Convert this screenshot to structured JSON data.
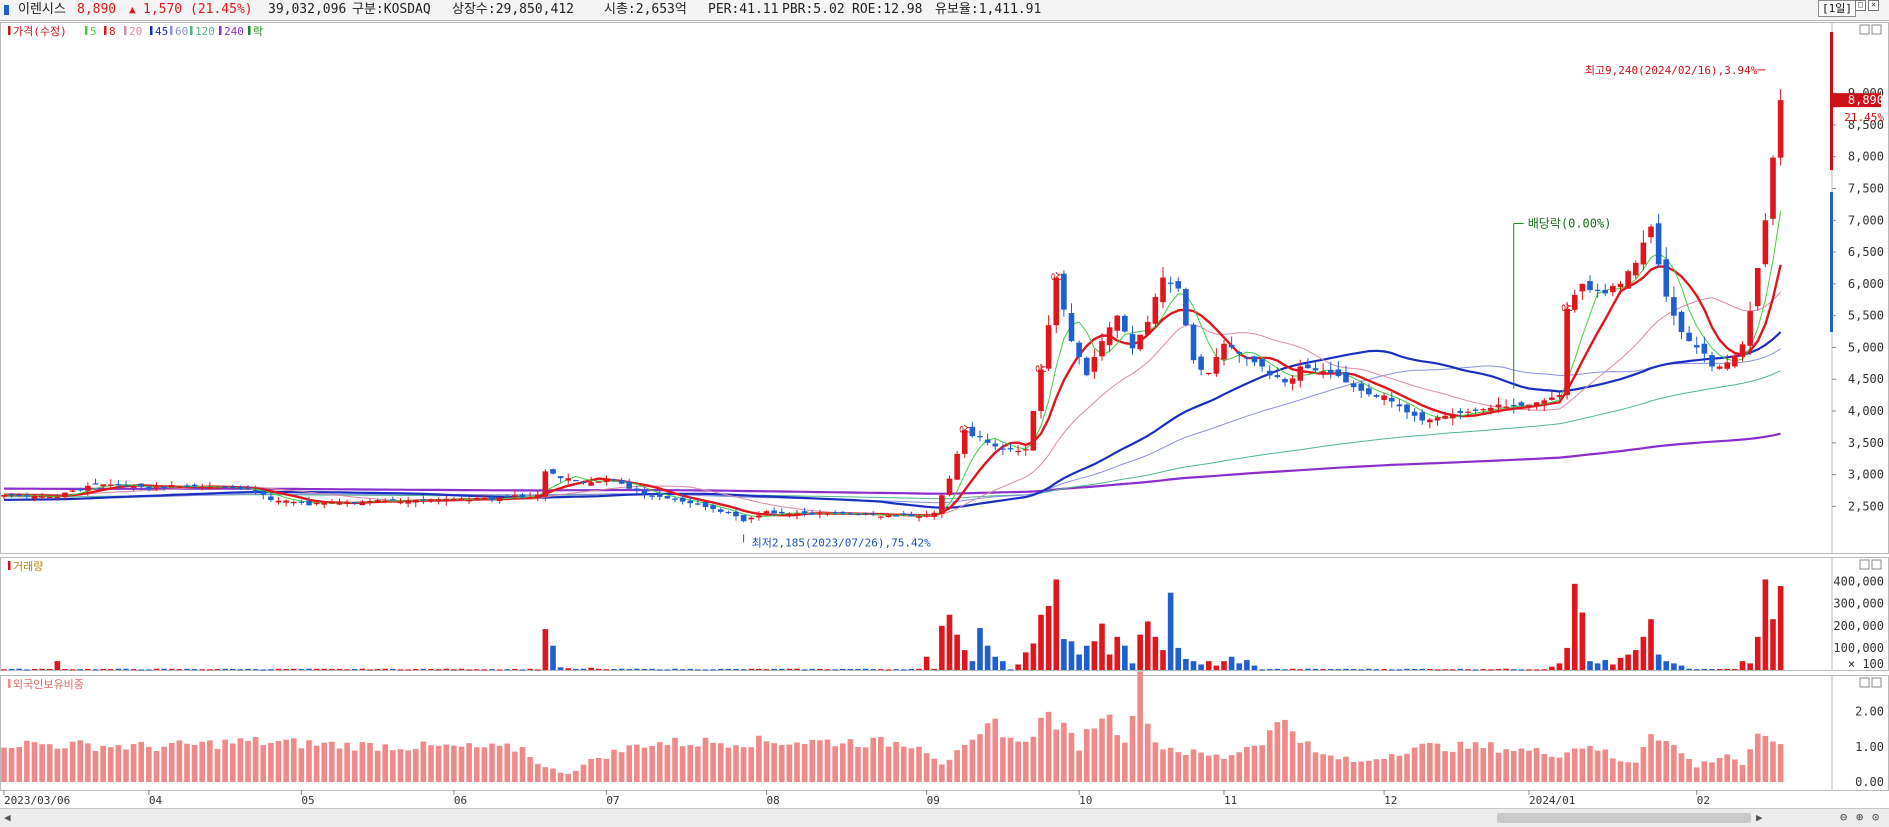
{
  "header": {
    "name": "이렌시스",
    "price": "8,890",
    "change_arrow": "▲",
    "change": "1,570",
    "change_pct": "(21.45%)",
    "volume": "39,032,096",
    "market": "구분:KOSDAQ",
    "shares": "상장수:29,850,412",
    "market_cap": "시총:2,653억",
    "per": "PER:41.11",
    "pbr": "PBR:5.02",
    "roe": "ROE:12.98",
    "float": "유보율:1,411.91",
    "period": "[1일]"
  },
  "colors": {
    "up": "#e0161e",
    "down": "#1f5fd0",
    "ma5": "#3fcf3f",
    "ma8": "#e0161e",
    "ma20": "#d98aa6",
    "ma45": "#1a2fbf",
    "ma60": "#8a8fe0",
    "ma120": "#4fb88a",
    "ma240": "#8a2fc9",
    "foreign": "#f08a8a"
  },
  "chart_data": [
    {
      "type": "candlestick",
      "legend": [
        "가격(수정)",
        "5",
        "8",
        "20",
        "45",
        "60",
        "120",
        "240",
        "락"
      ],
      "y_ticks": [
        2500,
        3000,
        3500,
        4000,
        4500,
        5000,
        5500,
        6000,
        6500,
        7000,
        7500,
        8000,
        8500,
        9000
      ],
      "y_tick_labels": [
        "2,500",
        "3,000",
        "3,500",
        "4,000",
        "4,500",
        "5,000",
        "5,500",
        "6,000",
        "6,500",
        "7,000",
        "7,500",
        "8,000",
        "8,500",
        "9,000"
      ],
      "ylim": [
        2050,
        9600
      ],
      "x_tick_labels": [
        "2023/03/06",
        "04",
        "05",
        "06",
        "07",
        "08",
        "09",
        "10",
        "11",
        "12",
        "2024/01",
        "02"
      ],
      "x_tick_index": [
        0,
        19,
        39,
        59,
        79,
        100,
        121,
        141,
        160,
        181,
        200,
        222
      ],
      "num_days": 234,
      "current_price": 8890,
      "current_price_label": "8,890",
      "current_pct_label": "21.45%",
      "annotations": {
        "high": "최고9,240(2024/02/16),3.94%",
        "high_index": 231,
        "high_value": 9240,
        "low": "최저2,185(2023/07/26),75.42%",
        "low_index": 97,
        "low_value": 2185,
        "dividend": "배당락(0.00%)",
        "dividend_index": 198,
        "limit_up": "상",
        "limit_up_index": [
          126,
          136,
          138,
          205
        ]
      },
      "anchors": [
        [
          0,
          2680
        ],
        [
          6,
          2650
        ],
        [
          9,
          2750
        ],
        [
          12,
          2860
        ],
        [
          19,
          2800
        ],
        [
          26,
          2810
        ],
        [
          32,
          2780
        ],
        [
          35,
          2600
        ],
        [
          40,
          2550
        ],
        [
          50,
          2590
        ],
        [
          60,
          2620
        ],
        [
          70,
          2650
        ],
        [
          71,
          3050
        ],
        [
          76,
          2870
        ],
        [
          80,
          2910
        ],
        [
          84,
          2700
        ],
        [
          90,
          2550
        ],
        [
          95,
          2400
        ],
        [
          97,
          2290
        ],
        [
          100,
          2390
        ],
        [
          110,
          2390
        ],
        [
          120,
          2340
        ],
        [
          122,
          2400
        ],
        [
          124,
          2950
        ],
        [
          126,
          3700
        ],
        [
          128,
          3600
        ],
        [
          130,
          3400
        ],
        [
          134,
          3400
        ],
        [
          136,
          4600
        ],
        [
          138,
          6100
        ],
        [
          140,
          5100
        ],
        [
          142,
          4600
        ],
        [
          144,
          5100
        ],
        [
          146,
          5500
        ],
        [
          148,
          5000
        ],
        [
          150,
          5400
        ],
        [
          152,
          6100
        ],
        [
          154,
          5900
        ],
        [
          156,
          4800
        ],
        [
          158,
          4600
        ],
        [
          160,
          5100
        ],
        [
          162,
          4900
        ],
        [
          165,
          4700
        ],
        [
          168,
          4450
        ],
        [
          170,
          4700
        ],
        [
          174,
          4600
        ],
        [
          178,
          4300
        ],
        [
          182,
          4150
        ],
        [
          186,
          3850
        ],
        [
          190,
          3950
        ],
        [
          195,
          4050
        ],
        [
          200,
          4100
        ],
        [
          204,
          4250
        ],
        [
          205,
          5650
        ],
        [
          207,
          6000
        ],
        [
          210,
          5850
        ],
        [
          212,
          6000
        ],
        [
          214,
          6400
        ],
        [
          216,
          6900
        ],
        [
          218,
          5800
        ],
        [
          220,
          5200
        ],
        [
          222,
          5000
        ],
        [
          224,
          4700
        ],
        [
          226,
          4700
        ],
        [
          228,
          5050
        ],
        [
          229,
          5500
        ],
        [
          231,
          7000
        ],
        [
          232,
          7900
        ],
        [
          233,
          8890
        ]
      ]
    },
    {
      "type": "bar",
      "legend": [
        "거래량"
      ],
      "y_ticks": [
        100000,
        200000,
        300000,
        400000
      ],
      "y_tick_labels": [
        "100,000",
        "200,000",
        "300,000",
        "400,000"
      ],
      "bottom_label": "× 100",
      "ylim": [
        0,
        430000
      ],
      "spikes": [
        [
          7,
          40000
        ],
        [
          71,
          185000
        ],
        [
          72,
          110000
        ],
        [
          73,
          12000
        ],
        [
          74,
          8000
        ],
        [
          77,
          10000
        ],
        [
          121,
          60000
        ],
        [
          123,
          200000
        ],
        [
          124,
          250000
        ],
        [
          125,
          160000
        ],
        [
          126,
          90000
        ],
        [
          127,
          40000
        ],
        [
          128,
          190000
        ],
        [
          129,
          110000
        ],
        [
          130,
          60000
        ],
        [
          131,
          40000
        ],
        [
          133,
          25000
        ],
        [
          134,
          80000
        ],
        [
          135,
          120000
        ],
        [
          136,
          250000
        ],
        [
          137,
          290000
        ],
        [
          138,
          410000
        ],
        [
          139,
          140000
        ],
        [
          140,
          130000
        ],
        [
          141,
          70000
        ],
        [
          142,
          110000
        ],
        [
          143,
          130000
        ],
        [
          144,
          210000
        ],
        [
          145,
          70000
        ],
        [
          146,
          150000
        ],
        [
          147,
          110000
        ],
        [
          148,
          30000
        ],
        [
          149,
          160000
        ],
        [
          150,
          220000
        ],
        [
          151,
          150000
        ],
        [
          152,
          90000
        ],
        [
          153,
          350000
        ],
        [
          154,
          100000
        ],
        [
          155,
          50000
        ],
        [
          156,
          40000
        ],
        [
          157,
          25000
        ],
        [
          158,
          40000
        ],
        [
          159,
          20000
        ],
        [
          160,
          40000
        ],
        [
          161,
          60000
        ],
        [
          162,
          30000
        ],
        [
          163,
          45000
        ],
        [
          164,
          20000
        ],
        [
          203,
          15000
        ],
        [
          204,
          30000
        ],
        [
          205,
          100000
        ],
        [
          206,
          390000
        ],
        [
          207,
          260000
        ],
        [
          208,
          40000
        ],
        [
          209,
          30000
        ],
        [
          210,
          45000
        ],
        [
          211,
          25000
        ],
        [
          212,
          55000
        ],
        [
          213,
          70000
        ],
        [
          214,
          90000
        ],
        [
          215,
          150000
        ],
        [
          216,
          230000
        ],
        [
          217,
          70000
        ],
        [
          218,
          40000
        ],
        [
          219,
          30000
        ],
        [
          220,
          20000
        ],
        [
          228,
          40000
        ],
        [
          229,
          30000
        ],
        [
          230,
          150000
        ],
        [
          231,
          410000
        ],
        [
          232,
          230000
        ],
        [
          233,
          380000
        ]
      ]
    },
    {
      "type": "bar",
      "legend": [
        "외국인보유비중"
      ],
      "y_ticks": [
        0,
        1,
        2
      ],
      "y_tick_labels": [
        "0.00",
        "1.00",
        "2.00"
      ],
      "ylim": [
        0,
        2.9
      ],
      "anchors": [
        [
          0,
          1.1
        ],
        [
          10,
          1.05
        ],
        [
          20,
          1.0
        ],
        [
          32,
          1.15
        ],
        [
          45,
          1.05
        ],
        [
          56,
          1.0
        ],
        [
          68,
          0.95
        ],
        [
          71,
          0.4
        ],
        [
          74,
          0.25
        ],
        [
          78,
          0.7
        ],
        [
          84,
          1.1
        ],
        [
          96,
          1.15
        ],
        [
          110,
          1.15
        ],
        [
          120,
          1.1
        ],
        [
          123,
          0.55
        ],
        [
          127,
          1.05
        ],
        [
          130,
          1.7
        ],
        [
          133,
          1.05
        ],
        [
          137,
          1.9
        ],
        [
          141,
          1.05
        ],
        [
          144,
          2.0
        ],
        [
          147,
          1.3
        ],
        [
          149,
          2.8
        ],
        [
          151,
          1.1
        ],
        [
          155,
          0.85
        ],
        [
          160,
          0.7
        ],
        [
          165,
          1.2
        ],
        [
          168,
          1.8
        ],
        [
          172,
          0.8
        ],
        [
          178,
          0.55
        ],
        [
          185,
          1.0
        ],
        [
          195,
          1.0
        ],
        [
          204,
          0.8
        ],
        [
          208,
          1.1
        ],
        [
          212,
          0.55
        ],
        [
          214,
          0.6
        ],
        [
          216,
          1.5
        ],
        [
          219,
          1.0
        ],
        [
          222,
          0.45
        ],
        [
          226,
          0.8
        ],
        [
          228,
          0.5
        ],
        [
          230,
          1.2
        ],
        [
          233,
          1.2
        ]
      ]
    }
  ]
}
